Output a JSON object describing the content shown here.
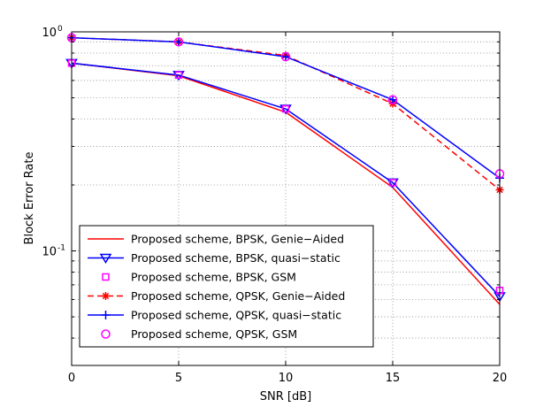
{
  "chart_data": {
    "type": "line",
    "title": "",
    "xlabel": "SNR [dB]",
    "ylabel": "Block Error Rate",
    "x": [
      0,
      5,
      10,
      15,
      20
    ],
    "xlim": [
      0,
      20
    ],
    "ylim": [
      0.03,
      1
    ],
    "yscale": "log",
    "grid": true,
    "legend_position": "bottom-left",
    "x_ticks": [
      0,
      5,
      10,
      15,
      20
    ],
    "x_tick_labels": [
      "0",
      "5",
      "10",
      "15",
      "20"
    ],
    "y_major_ticks": [
      0.1,
      1
    ],
    "y_tick_labels": [
      {
        "base": "10",
        "exp": "-1"
      },
      {
        "base": "10",
        "exp": "0"
      }
    ],
    "series": [
      {
        "name": "Proposed scheme, BPSK, Genie−Aided",
        "values": [
          0.72,
          0.63,
          0.43,
          0.195,
          0.057
        ],
        "color": "#ff0000",
        "dash": "solid",
        "marker": "none"
      },
      {
        "name": "Proposed scheme, BPSK, quasi−static",
        "values": [
          0.72,
          0.635,
          0.445,
          0.205,
          0.062
        ],
        "color": "#0000ff",
        "dash": "solid",
        "marker": "triangle-down"
      },
      {
        "name": "Proposed scheme, BPSK, GSM",
        "values": [
          0.72,
          0.635,
          0.445,
          0.205,
          0.066
        ],
        "color": "#ff00ff",
        "dash": "none",
        "marker": "square"
      },
      {
        "name": "Proposed scheme, QPSK, Genie−Aided",
        "values": [
          0.94,
          0.9,
          0.78,
          0.47,
          0.19
        ],
        "color": "#ff0000",
        "dash": "dashed",
        "marker": "star"
      },
      {
        "name": "Proposed scheme, QPSK, quasi−static",
        "values": [
          0.94,
          0.9,
          0.77,
          0.49,
          0.215
        ],
        "color": "#0000ff",
        "dash": "solid",
        "marker": "plus"
      },
      {
        "name": "Proposed scheme, QPSK, GSM",
        "values": [
          0.94,
          0.9,
          0.77,
          0.49,
          0.225
        ],
        "color": "#ff00ff",
        "dash": "none",
        "marker": "circle"
      }
    ]
  }
}
